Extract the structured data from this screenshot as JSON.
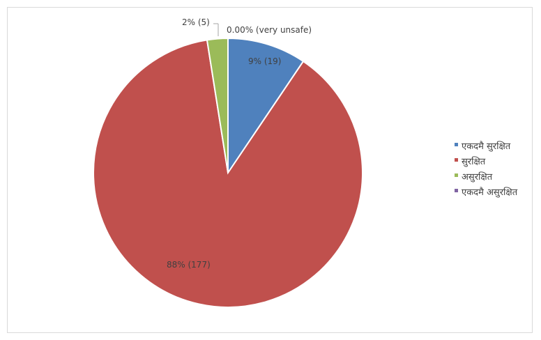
{
  "chart_data": {
    "type": "pie",
    "title": "",
    "categories": [
      "एकदमै सुरक्षित",
      "सुरक्षित",
      "असुरक्षित",
      "एकदमै असुरक्षित"
    ],
    "values": [
      19,
      177,
      5,
      0
    ],
    "percent_labels": [
      "9% (19)",
      "88% (177)",
      "2% (5)",
      "0.00% (very unsafe)"
    ],
    "colors": [
      "#4F81BD",
      "#C0504D",
      "#9BBB59",
      "#8064A2"
    ],
    "legend_position": "right",
    "start_angle": "12 o'clock, clockwise"
  }
}
